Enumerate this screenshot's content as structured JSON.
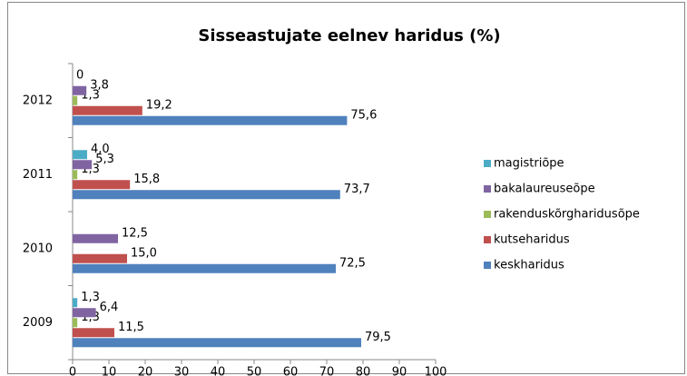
{
  "chart_data": {
    "type": "hbar",
    "title": "Sisseastujate eelnev haridus (%)",
    "categories": [
      "2009",
      "2010",
      "2011",
      "2012"
    ],
    "series": [
      {
        "name": "keskharidus",
        "color": "#4f81bd",
        "values": [
          79.5,
          72.5,
          73.7,
          75.6
        ],
        "value_labels": [
          "79,5",
          "72,5",
          "73,7",
          "75,6"
        ]
      },
      {
        "name": "kutseharidus",
        "color": "#c0504d",
        "values": [
          11.5,
          15.0,
          15.8,
          19.2
        ],
        "value_labels": [
          "11,5",
          "15,0",
          "15,8",
          "19,2"
        ]
      },
      {
        "name": "rakenduskõrgharidusõpe",
        "color": "#9bbb59",
        "values": [
          1.3,
          null,
          1.3,
          1.3
        ],
        "value_labels": [
          "1,3",
          null,
          "1,3",
          "1,3"
        ]
      },
      {
        "name": "bakalaureuseõpe",
        "color": "#8064a2",
        "values": [
          6.4,
          12.5,
          5.3,
          3.8
        ],
        "value_labels": [
          "6,4",
          "12,5",
          "5,3",
          "3,8"
        ]
      },
      {
        "name": "magistriõpe",
        "color": "#4bacc6",
        "values": [
          1.3,
          null,
          4.0,
          0
        ],
        "value_labels": [
          "1,3",
          null,
          "4,0",
          "0"
        ]
      }
    ],
    "xlim": [
      0,
      100
    ],
    "xticks": [
      0,
      10,
      20,
      30,
      40,
      50,
      60,
      70,
      80,
      90,
      100
    ],
    "legend": "right"
  }
}
